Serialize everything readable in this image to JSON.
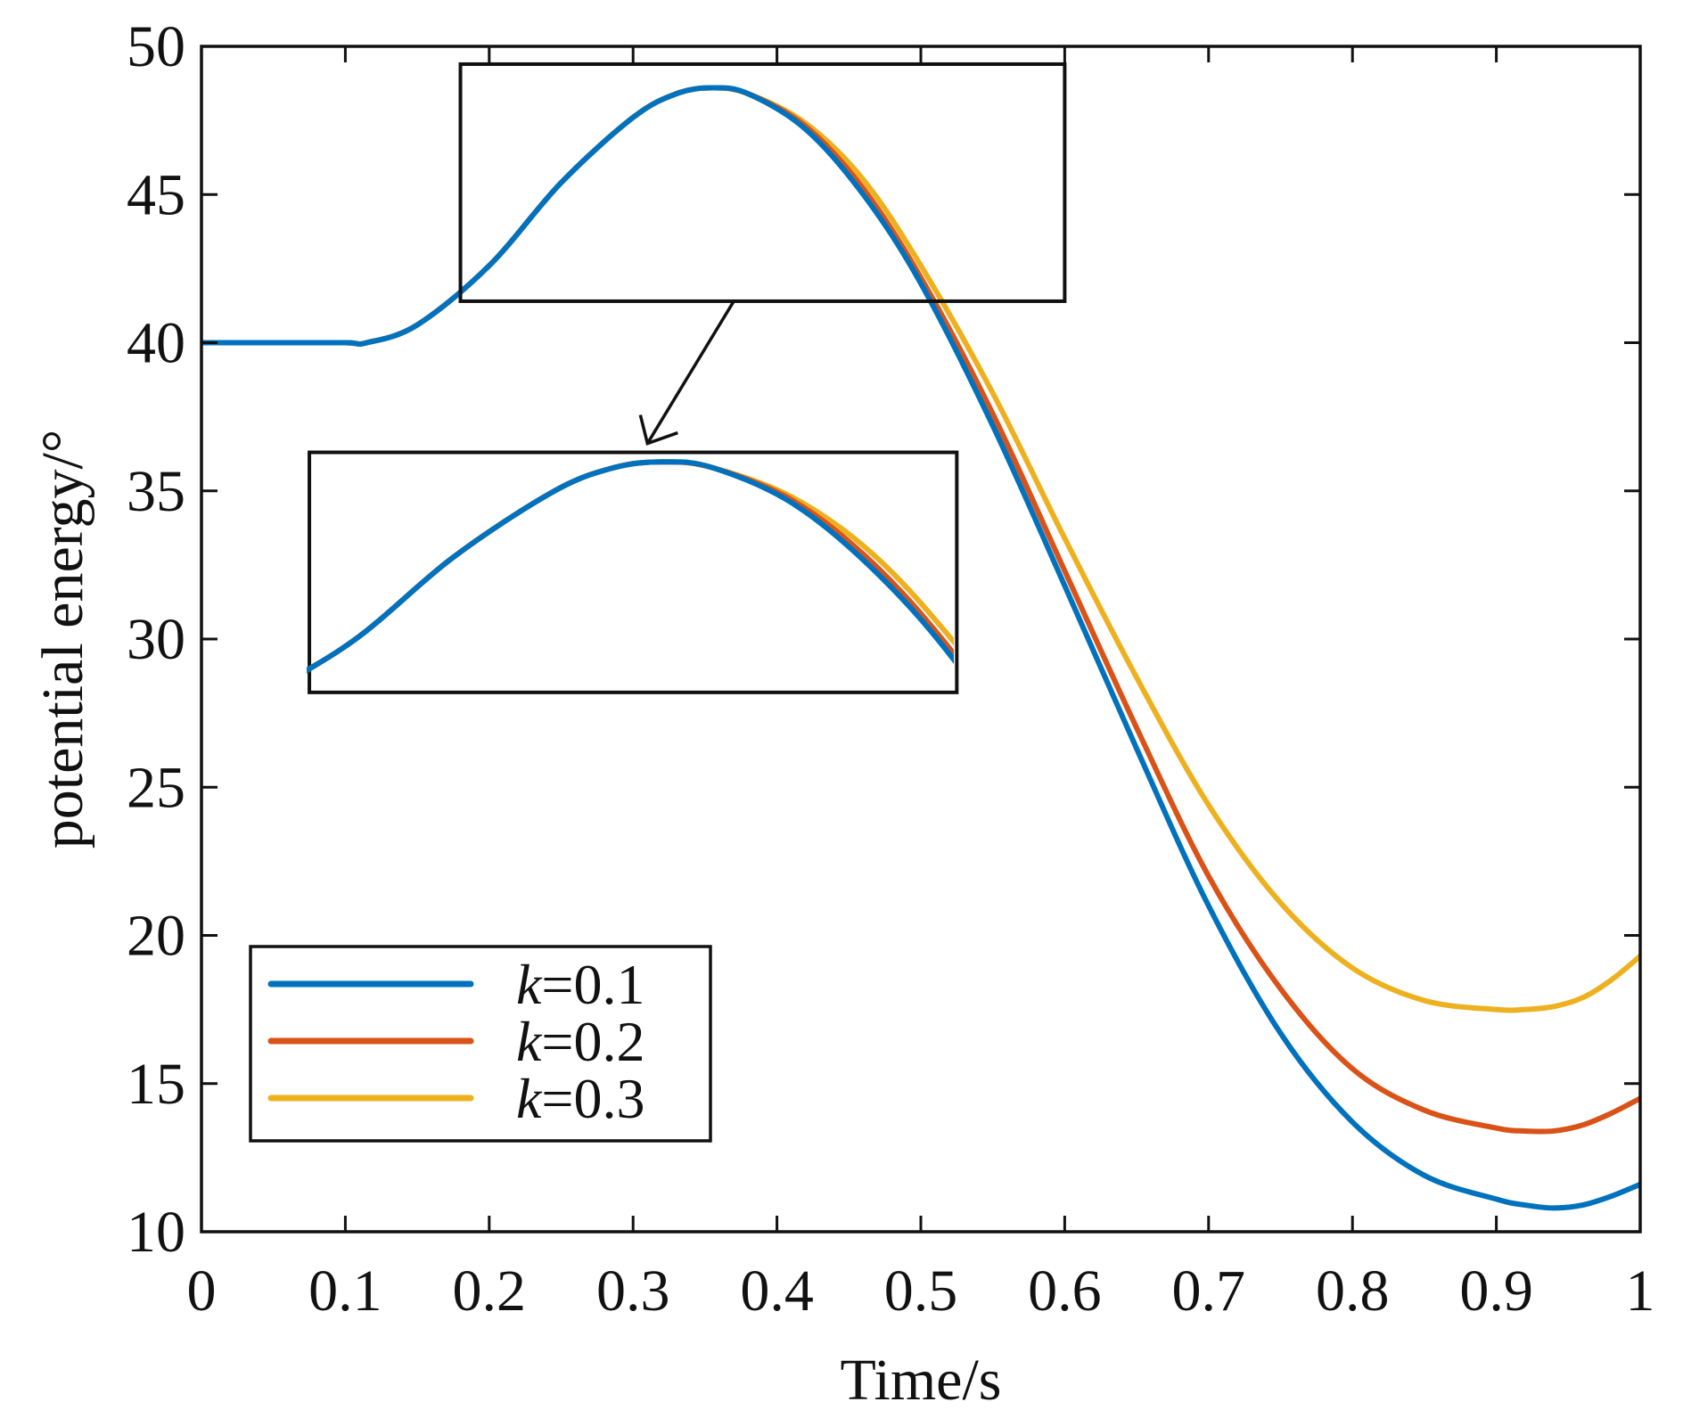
{
  "chart_data": {
    "type": "line",
    "title": "",
    "xlabel": "Time/s",
    "ylabel": "potential energy/°",
    "xlim": [
      0,
      1
    ],
    "ylim": [
      10,
      50
    ],
    "xticks": [
      0,
      0.1,
      0.2,
      0.3,
      0.4,
      0.5,
      0.6,
      0.7,
      0.8,
      0.9,
      1
    ],
    "xtick_labels": [
      "0",
      "0.1",
      "0.2",
      "0.3",
      "0.4",
      "0.5",
      "0.6",
      "0.7",
      "0.8",
      "0.9",
      "1"
    ],
    "yticks": [
      10,
      15,
      20,
      25,
      30,
      35,
      40,
      45,
      50
    ],
    "ytick_labels": [
      "10",
      "15",
      "20",
      "25",
      "30",
      "35",
      "40",
      "45",
      "50"
    ],
    "grid": false,
    "legend_position": "bottom-left",
    "series": [
      {
        "name": "k=0.1",
        "legend_prefix": "k",
        "legend_suffix": "=0.1",
        "color": "#0072BD",
        "x": [
          0,
          0.05,
          0.1,
          0.115,
          0.15,
          0.2,
          0.25,
          0.3,
          0.33,
          0.355,
          0.38,
          0.42,
          0.46,
          0.5,
          0.55,
          0.6,
          0.65,
          0.7,
          0.75,
          0.8,
          0.85,
          0.9,
          0.92,
          0.94,
          0.96,
          0.98,
          1.0
        ],
        "y": [
          40.0,
          40.0,
          40.0,
          40.0,
          40.6,
          42.6,
          45.4,
          47.6,
          48.4,
          48.6,
          48.4,
          47.2,
          45.0,
          42.0,
          37.2,
          31.8,
          26.3,
          21.0,
          16.7,
          13.7,
          11.9,
          11.1,
          10.9,
          10.8,
          10.9,
          11.2,
          11.6
        ]
      },
      {
        "name": "k=0.2",
        "legend_prefix": "k",
        "legend_suffix": "=0.2",
        "color": "#D95319",
        "x": [
          0,
          0.05,
          0.1,
          0.115,
          0.15,
          0.2,
          0.25,
          0.3,
          0.33,
          0.355,
          0.38,
          0.42,
          0.46,
          0.5,
          0.55,
          0.6,
          0.65,
          0.7,
          0.75,
          0.8,
          0.85,
          0.9,
          0.92,
          0.94,
          0.96,
          0.98,
          1.0
        ],
        "y": [
          40.0,
          40.0,
          40.0,
          40.0,
          40.6,
          42.6,
          45.4,
          47.6,
          48.4,
          48.6,
          48.4,
          47.3,
          45.2,
          42.2,
          37.6,
          32.3,
          27.0,
          22.0,
          18.2,
          15.5,
          14.1,
          13.5,
          13.4,
          13.4,
          13.6,
          14.0,
          14.5
        ]
      },
      {
        "name": "k=0.3",
        "legend_prefix": "k",
        "legend_suffix": "=0.3",
        "color": "#EDB120",
        "x": [
          0,
          0.05,
          0.1,
          0.115,
          0.15,
          0.2,
          0.25,
          0.3,
          0.33,
          0.355,
          0.38,
          0.42,
          0.46,
          0.5,
          0.55,
          0.6,
          0.65,
          0.7,
          0.75,
          0.8,
          0.85,
          0.9,
          0.92,
          0.94,
          0.96,
          0.98,
          1.0
        ],
        "y": [
          40.0,
          40.0,
          40.0,
          40.0,
          40.6,
          42.6,
          45.4,
          47.6,
          48.4,
          48.6,
          48.4,
          47.4,
          45.5,
          42.6,
          38.3,
          33.4,
          28.7,
          24.4,
          21.1,
          18.9,
          17.8,
          17.5,
          17.5,
          17.6,
          17.9,
          18.5,
          19.3
        ]
      }
    ],
    "annotations": [
      {
        "type": "zoom-inset",
        "description": "magnified view of the curve peak region",
        "source_region": {
          "x_range": [
            0.18,
            0.6
          ],
          "y_range": [
            41.4,
            49.4
          ]
        },
        "inset_region": {
          "x_range": [
            0.075,
            0.525
          ],
          "y_range": [
            28.2,
            36.3
          ]
        },
        "magnified_window": {
          "x_range": [
            0.18,
            0.5
          ],
          "y_range": [
            41.0,
            48.8
          ]
        }
      }
    ]
  }
}
